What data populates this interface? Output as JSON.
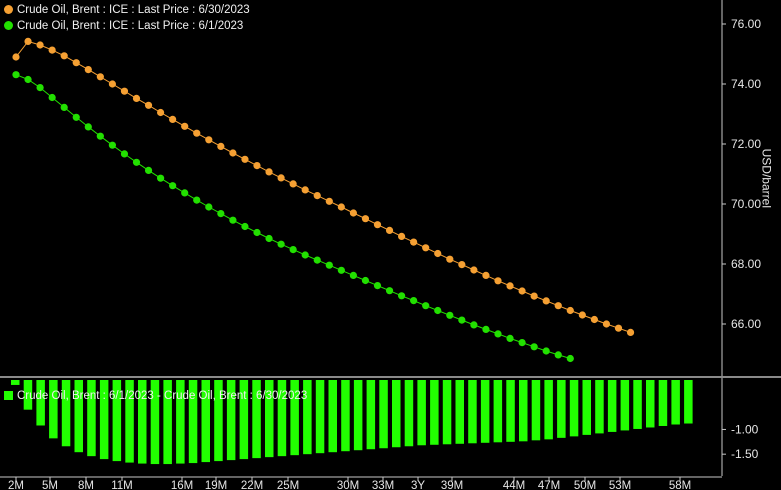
{
  "chart_data": [
    {
      "type": "line",
      "legend": [
        {
          "label": "Crude Oil, Brent : ICE : Last Price : 6/30/2023",
          "color": "#f5a033"
        },
        {
          "label": "Crude Oil, Brent : ICE : Last Price : 6/1/2023",
          "color": "#22e000"
        }
      ],
      "x_count": 59,
      "series": [
        {
          "name": "Crude Oil, Brent : ICE : Last Price : 6/30/2023",
          "color": "#f5a033",
          "values": [
            74.9,
            75.42,
            75.3,
            75.13,
            74.94,
            74.71,
            74.48,
            74.24,
            74.0,
            73.76,
            73.52,
            73.29,
            73.05,
            72.82,
            72.59,
            72.36,
            72.14,
            71.92,
            71.7,
            71.49,
            71.28,
            71.07,
            70.87,
            70.67,
            70.47,
            70.28,
            70.09,
            69.9,
            69.7,
            69.51,
            69.31,
            69.12,
            68.92,
            68.73,
            68.54,
            68.35,
            68.16,
            67.98,
            67.8,
            67.62,
            67.44,
            67.27,
            67.1,
            66.93,
            66.77,
            66.61,
            66.45,
            66.3,
            66.15,
            66.0,
            65.86,
            65.72
          ]
        },
        {
          "name": "Crude Oil, Brent : ICE : Last Price : 6/1/2023",
          "color": "#22e000",
          "values": [
            74.31,
            74.15,
            73.88,
            73.55,
            73.22,
            72.89,
            72.57,
            72.26,
            71.96,
            71.67,
            71.39,
            71.12,
            70.86,
            70.61,
            70.37,
            70.13,
            69.9,
            69.68,
            69.46,
            69.25,
            69.05,
            68.85,
            68.66,
            68.48,
            68.3,
            68.13,
            67.96,
            67.79,
            67.62,
            67.45,
            67.28,
            67.11,
            66.94,
            66.78,
            66.61,
            66.45,
            66.29,
            66.13,
            65.97,
            65.82,
            65.67,
            65.52,
            65.38,
            65.24,
            65.1,
            64.97,
            64.85
          ]
        }
      ],
      "ylabel": "USD/barrel",
      "ylim": [
        64.8,
        76.8
      ],
      "yticks": [
        "76.00",
        "74.00",
        "72.00",
        "70.00",
        "68.00",
        "66.00"
      ]
    },
    {
      "type": "bar",
      "legend": [
        {
          "label": "Crude Oil, Brent : 6/1/2023 - Crude Oil, Brent : 6/30/2023",
          "color": "#22ff00"
        }
      ],
      "values": [
        -0.1,
        -0.6,
        -0.92,
        -1.18,
        -1.34,
        -1.46,
        -1.54,
        -1.6,
        -1.64,
        -1.67,
        -1.69,
        -1.7,
        -1.7,
        -1.69,
        -1.68,
        -1.66,
        -1.64,
        -1.62,
        -1.6,
        -1.58,
        -1.56,
        -1.54,
        -1.52,
        -1.5,
        -1.48,
        -1.46,
        -1.44,
        -1.42,
        -1.4,
        -1.38,
        -1.36,
        -1.34,
        -1.32,
        -1.31,
        -1.3,
        -1.29,
        -1.28,
        -1.27,
        -1.26,
        -1.25,
        -1.24,
        -1.22,
        -1.2,
        -1.17,
        -1.14,
        -1.11,
        -1.08,
        -1.05,
        -1.02,
        -0.99,
        -0.96,
        -0.93,
        -0.9,
        -0.88
      ],
      "ylim": [
        -1.82,
        0.0
      ],
      "yticks": [
        "-1.00",
        "-1.50"
      ],
      "xticks": [
        "2M",
        "5M",
        "8M",
        "11M",
        "16M",
        "19M",
        "22M",
        "25M",
        "30M",
        "33M",
        "3Y",
        "39M",
        "44M",
        "47M",
        "50M",
        "53M",
        "58M"
      ]
    }
  ]
}
